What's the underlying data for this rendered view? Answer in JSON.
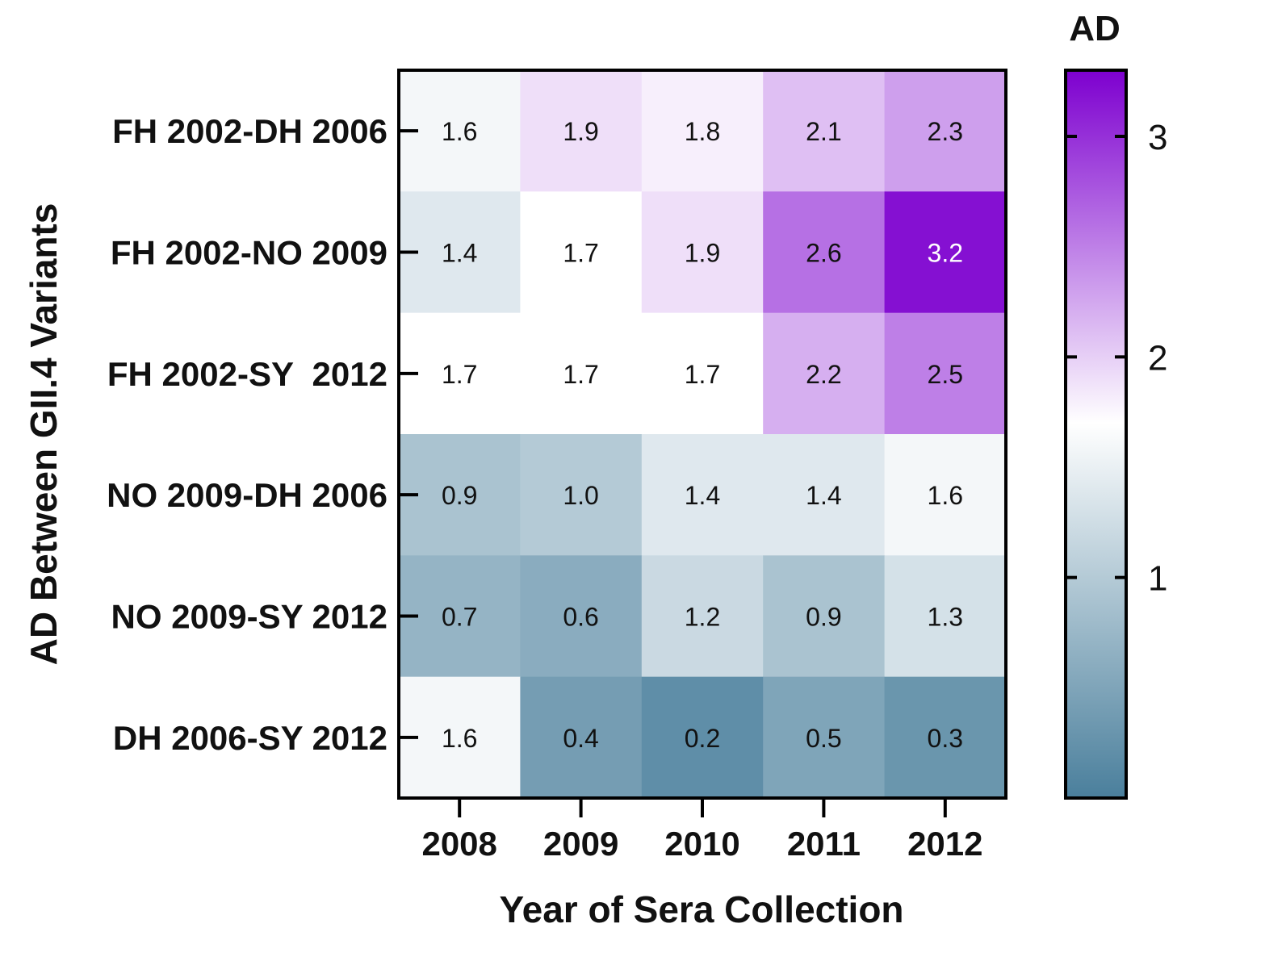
{
  "chart_data": {
    "type": "heatmap",
    "title": "",
    "xlabel": "Year of Sera Collection",
    "ylabel": "AD Between GII.4 Variants",
    "x_categories": [
      "2008",
      "2009",
      "2010",
      "2011",
      "2012"
    ],
    "y_categories": [
      "FH 2002-DH 2006",
      "FH 2002-NO 2009",
      "FH 2002-SY  2012",
      "NO 2009-DH 2006",
      "NO 2009-SY 2012",
      "DH 2006-SY 2012"
    ],
    "values": [
      [
        1.6,
        1.9,
        1.8,
        2.1,
        2.3
      ],
      [
        1.4,
        1.7,
        1.9,
        2.6,
        3.2
      ],
      [
        1.7,
        1.7,
        1.7,
        2.2,
        2.5
      ],
      [
        0.9,
        1.0,
        1.4,
        1.4,
        1.6
      ],
      [
        0.7,
        0.6,
        1.2,
        0.9,
        1.3
      ],
      [
        1.6,
        0.4,
        0.2,
        0.5,
        0.3
      ]
    ],
    "value_labels": [
      [
        "1.6",
        "1.9",
        "1.8",
        "2.1",
        "2.3"
      ],
      [
        "1.4",
        "1.7",
        "1.9",
        "2.6",
        "3.2"
      ],
      [
        "1.7",
        "1.7",
        "1.7",
        "2.2",
        "2.5"
      ],
      [
        "0.9",
        "1.0",
        "1.4",
        "1.4",
        "1.6"
      ],
      [
        "0.7",
        "0.6",
        "1.2",
        "0.9",
        "1.3"
      ],
      [
        "1.6",
        "0.4",
        "0.2",
        "0.5",
        "0.3"
      ]
    ],
    "colorbar": {
      "title": "AD",
      "range": [
        0,
        3.3
      ],
      "ticks": [
        1,
        2,
        3
      ],
      "tick_labels": [
        "1",
        "2",
        "3"
      ],
      "colors": [
        "#4a7f9c",
        "#ffffff",
        "#7d00cf"
      ],
      "midpoint": 1.7
    },
    "legend": "right"
  }
}
